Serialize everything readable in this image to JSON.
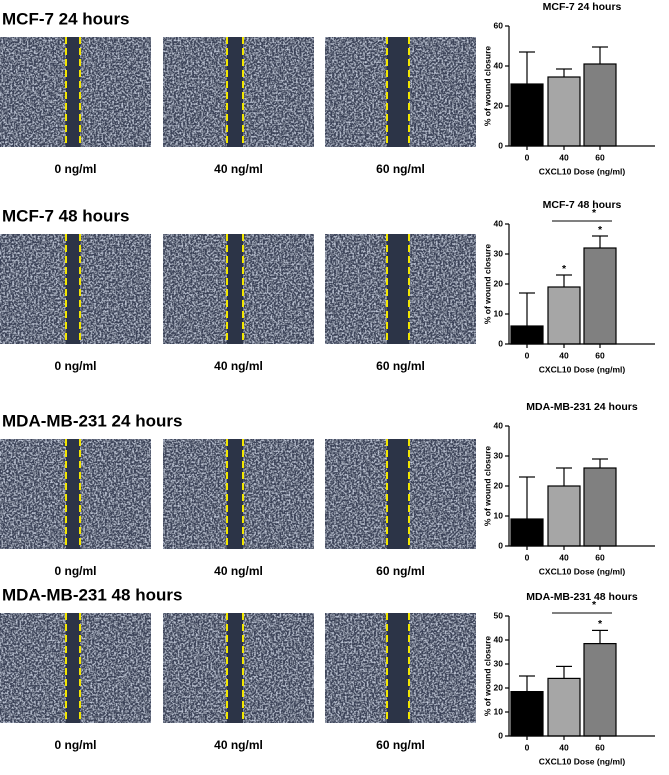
{
  "panels": [
    {
      "title": "MCF-7 24 hours",
      "image_labels": [
        "0 ng/ml",
        "40 ng/ml",
        "60 ng/ml"
      ]
    },
    {
      "title": "MCF-7 48 hours",
      "image_labels": [
        "0 ng/ml",
        "40 ng/ml",
        "60 ng/ml"
      ]
    },
    {
      "title": "MDA-MB-231 24 hours",
      "image_labels": [
        "0 ng/ml",
        "40 ng/ml",
        "60 ng/ml"
      ]
    },
    {
      "title": "MDA-MB-231 48 hours",
      "image_labels": [
        "0 ng/ml",
        "40 ng/ml",
        "60 ng/ml"
      ]
    }
  ],
  "chart_data": [
    {
      "type": "bar",
      "title": "MCF-7 24 hours",
      "x_label": "CXCL10 Dose (ng/ml)",
      "y_label": "% of wound closure",
      "categories": [
        "0",
        "40",
        "60"
      ],
      "values": [
        31,
        34.5,
        41
      ],
      "errors": [
        16,
        4,
        8.5
      ],
      "colors": [
        "#000000",
        "#a6a6a6",
        "#808080"
      ],
      "ylim": [
        0,
        60
      ],
      "yticks": [
        0,
        20,
        40,
        60
      ]
    },
    {
      "type": "bar",
      "title": "MCF-7 48 hours",
      "x_label": "CXCL10 Dose (ng/ml)",
      "y_label": "% of wound closure",
      "categories": [
        "0",
        "40",
        "60"
      ],
      "values": [
        6,
        19,
        32
      ],
      "errors": [
        11,
        4,
        4
      ],
      "colors": [
        "#000000",
        "#a6a6a6",
        "#808080"
      ],
      "ylim": [
        0,
        40
      ],
      "yticks": [
        0,
        10,
        20,
        30,
        40
      ],
      "significance": [
        null,
        "*",
        "*"
      ],
      "bracket": {
        "from": 1,
        "to": 2,
        "label": "*"
      }
    },
    {
      "type": "bar",
      "title": "MDA-MB-231 24 hours",
      "x_label": "CXCL10 Dose (ng/ml)",
      "y_label": "% of wound closure",
      "categories": [
        "0",
        "40",
        "60"
      ],
      "values": [
        9,
        20,
        26
      ],
      "errors": [
        14,
        6,
        3
      ],
      "colors": [
        "#000000",
        "#a6a6a6",
        "#808080"
      ],
      "ylim": [
        0,
        40
      ],
      "yticks": [
        0,
        10,
        20,
        30,
        40
      ]
    },
    {
      "type": "bar",
      "title": "MDA-MB-231 48 hours",
      "x_label": "CXCL10 Dose (ng/ml)",
      "y_label": "% of wound closure",
      "categories": [
        "0",
        "40",
        "60"
      ],
      "values": [
        18.5,
        24,
        38.5
      ],
      "errors": [
        6.5,
        5,
        5.5
      ],
      "colors": [
        "#000000",
        "#a6a6a6",
        "#808080"
      ],
      "ylim": [
        0,
        50
      ],
      "yticks": [
        0,
        10,
        20,
        30,
        40,
        50
      ],
      "significance": [
        null,
        null,
        "*"
      ],
      "bracket": {
        "from": 1,
        "to": 2,
        "label": "*"
      }
    }
  ]
}
